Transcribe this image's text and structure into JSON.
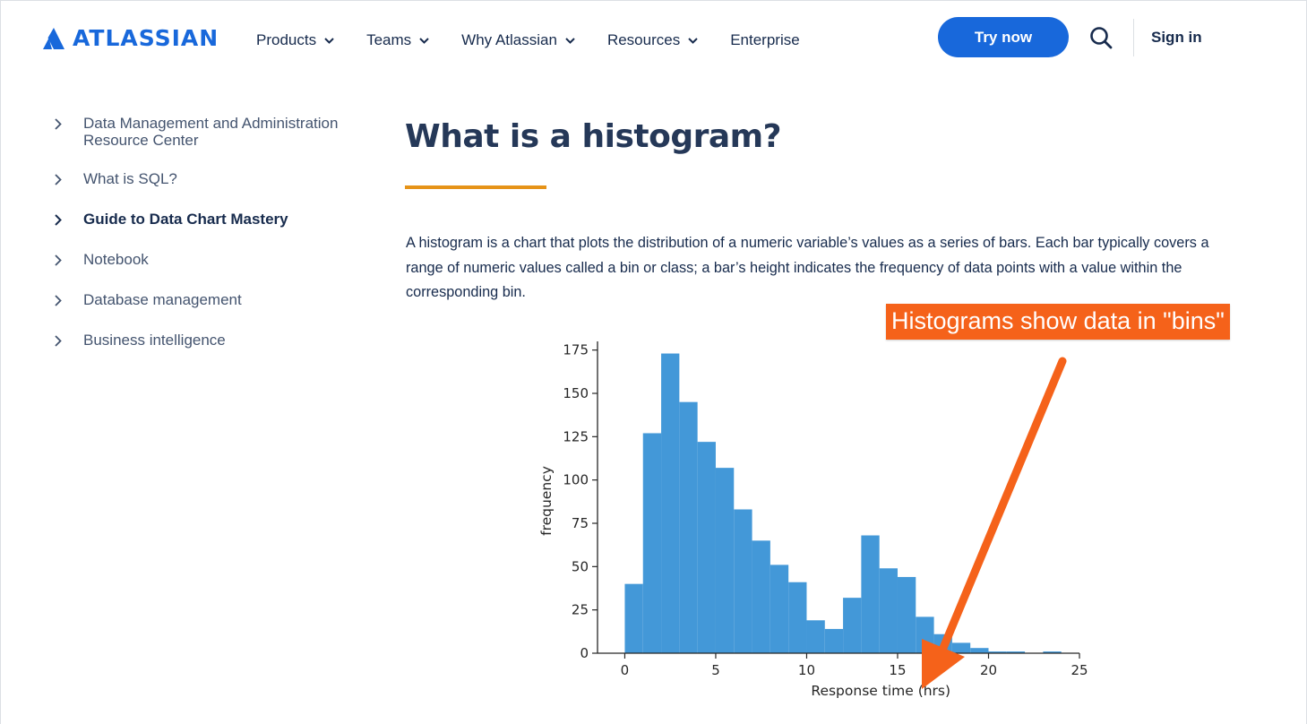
{
  "header": {
    "logo_text": "ATLASSIAN",
    "nav": [
      {
        "label": "Products",
        "has_dropdown": true
      },
      {
        "label": "Teams",
        "has_dropdown": true
      },
      {
        "label": "Why Atlassian",
        "has_dropdown": true
      },
      {
        "label": "Resources",
        "has_dropdown": true
      },
      {
        "label": "Enterprise",
        "has_dropdown": false
      }
    ],
    "cta_label": "Try now",
    "search_icon": "search-icon",
    "signin_label": "Sign in",
    "brand_color": "#1868db"
  },
  "sidebar": {
    "items": [
      {
        "label": "Data Management and Administration Resource Center",
        "active": false
      },
      {
        "label": "What is SQL?",
        "active": false
      },
      {
        "label": "Guide to Data Chart Mastery",
        "active": true
      },
      {
        "label": "Notebook",
        "active": false
      },
      {
        "label": "Database management",
        "active": false
      },
      {
        "label": "Business intelligence",
        "active": false
      }
    ]
  },
  "main": {
    "title": "What is a histogram?",
    "accent_color": "#e69318",
    "intro": "A histogram is a chart that plots the distribution of a numeric variable’s values as a series of bars. Each bar typically covers a range of numeric values called a bin or class; a bar’s height indicates the frequency of data points with a value within the corresponding bin."
  },
  "annotation": {
    "label": "Histograms show data in \"bins\"",
    "color": "#f5621a"
  },
  "chart_data": {
    "type": "bar",
    "subtype": "histogram",
    "bin_edges": [
      0,
      1,
      2,
      3,
      4,
      5,
      6,
      7,
      8,
      9,
      10,
      11,
      12,
      13,
      14,
      15,
      16,
      17,
      18,
      19,
      20,
      21,
      22,
      23,
      24
    ],
    "values": [
      40,
      127,
      173,
      145,
      122,
      107,
      83,
      65,
      51,
      41,
      19,
      14,
      32,
      68,
      49,
      44,
      21,
      11,
      6,
      3,
      1,
      1,
      0,
      1
    ],
    "xlabel": "Response time (hrs)",
    "ylabel": "frequency",
    "xlim": [
      -1.5,
      25
    ],
    "ylim": [
      0,
      180
    ],
    "xticks": [
      0,
      5,
      10,
      15,
      20,
      25
    ],
    "yticks": [
      0,
      25,
      50,
      75,
      100,
      125,
      150,
      175
    ],
    "bar_color": "#4398d8",
    "grid": false
  }
}
